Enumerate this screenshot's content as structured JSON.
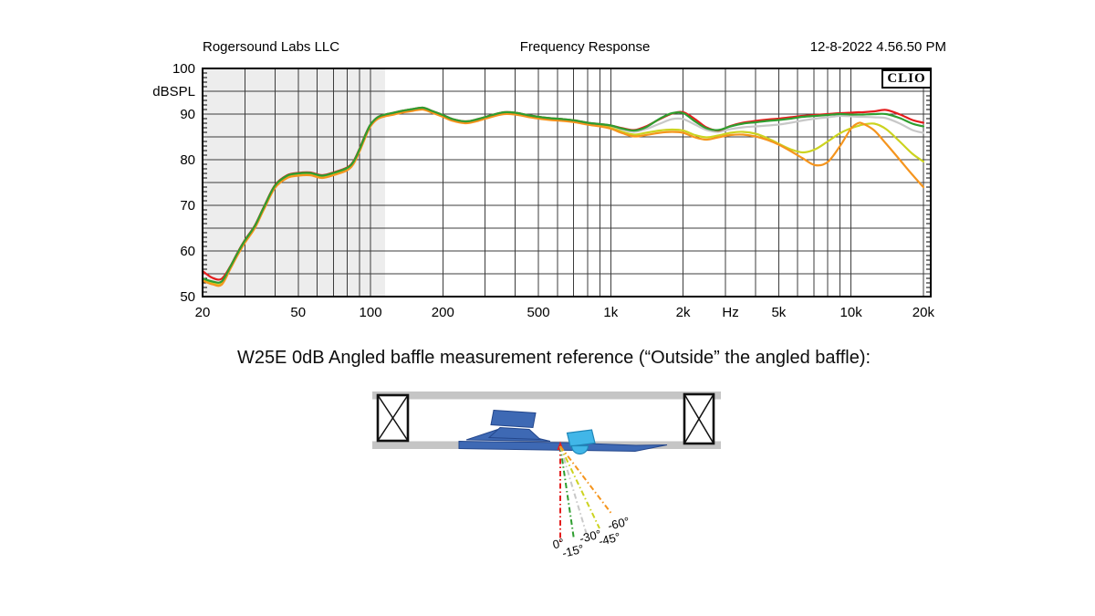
{
  "header": {
    "company": "Rogersound Labs LLC",
    "title": "Frequency Response",
    "timestamp": "12-8-2022 4.56.50 PM",
    "logo": "CLIO"
  },
  "caption": "W25E 0dB Angled baffle measurement reference (“Outside” the angled baffle):",
  "chart_data": {
    "type": "line",
    "title": "Frequency Response",
    "ylabel": "dBSPL",
    "x_unit": "Hz",
    "x_scale": "log",
    "xlim": [
      20,
      20000
    ],
    "ylim": [
      50,
      100
    ],
    "grid": "on",
    "y_ticks": [
      100,
      90,
      80,
      70,
      60,
      50
    ],
    "y_grid_step": 5,
    "x_ticks": [
      {
        "f": 20,
        "label": "20"
      },
      {
        "f": 50,
        "label": "50"
      },
      {
        "f": 100,
        "label": "100"
      },
      {
        "f": 200,
        "label": "200"
      },
      {
        "f": 500,
        "label": "500"
      },
      {
        "f": 1000,
        "label": "1k"
      },
      {
        "f": 2000,
        "label": "2k"
      },
      {
        "f": 3150,
        "label": "Hz"
      },
      {
        "f": 5000,
        "label": "5k"
      },
      {
        "f": 10000,
        "label": "10k"
      },
      {
        "f": 20000,
        "label": "20k"
      }
    ],
    "shaded_region": {
      "from": 20,
      "to": 115,
      "color": "#ededed"
    },
    "x": [
      20,
      22,
      24,
      26,
      28,
      30,
      33,
      36,
      40,
      45,
      50,
      56,
      63,
      71,
      80,
      85,
      90,
      95,
      100,
      107,
      115,
      125,
      135,
      150,
      165,
      180,
      200,
      220,
      250,
      280,
      320,
      360,
      400,
      450,
      500,
      560,
      630,
      710,
      800,
      900,
      1000,
      1120,
      1250,
      1400,
      1600,
      1800,
      2000,
      2240,
      2500,
      2800,
      3150,
      3550,
      4000,
      4500,
      5000,
      5600,
      6300,
      7100,
      8000,
      9000,
      10000,
      10700,
      11200,
      12500,
      14000,
      16000,
      18000,
      20000
    ],
    "series": [
      {
        "name": "0°",
        "color": "#e41e1e",
        "values": [
          55.6,
          54.1,
          53.9,
          56.5,
          59.7,
          62.4,
          65.6,
          69.7,
          74.4,
          76.6,
          77.1,
          77.2,
          76.6,
          77.3,
          78.3,
          79.7,
          82.4,
          85.4,
          87.7,
          89.3,
          89.9,
          90.3,
          90.7,
          91.1,
          91.4,
          90.7,
          89.8,
          88.9,
          88.4,
          88.9,
          89.8,
          90.4,
          90.3,
          89.8,
          89.4,
          89.1,
          88.9,
          88.6,
          88.1,
          87.8,
          87.5,
          86.9,
          86.5,
          87.3,
          88.9,
          90.1,
          90.4,
          88.9,
          87.1,
          86.4,
          87.4,
          88.1,
          88.5,
          88.8,
          89.0,
          89.3,
          89.6,
          89.8,
          90.0,
          90.2,
          90.3,
          90.4,
          90.4,
          90.6,
          90.9,
          89.9,
          88.7,
          88.1
        ]
      },
      {
        "name": "-15°",
        "color": "#2f9e30",
        "values": [
          54.0,
          53.3,
          53.3,
          56.4,
          59.6,
          62.3,
          65.5,
          69.6,
          74.3,
          76.5,
          77.0,
          77.1,
          76.5,
          77.2,
          78.2,
          79.6,
          82.3,
          85.3,
          87.7,
          89.3,
          89.9,
          90.3,
          90.7,
          91.1,
          91.4,
          90.7,
          89.8,
          88.9,
          88.4,
          88.9,
          89.8,
          90.4,
          90.3,
          89.8,
          89.4,
          89.1,
          88.9,
          88.6,
          88.1,
          87.8,
          87.5,
          86.8,
          86.4,
          87.1,
          89.0,
          90.2,
          90.2,
          88.4,
          86.9,
          86.5,
          87.3,
          87.9,
          88.2,
          88.5,
          88.7,
          89.0,
          89.4,
          89.6,
          89.8,
          90.0,
          89.9,
          89.9,
          89.9,
          90.0,
          90.0,
          89.1,
          87.9,
          87.3
        ]
      },
      {
        "name": "-30°",
        "color": "#c8c8c8",
        "values": [
          53.9,
          53.1,
          53.0,
          56.3,
          59.5,
          62.2,
          65.4,
          69.5,
          74.2,
          76.4,
          76.9,
          77.0,
          76.4,
          77.1,
          78.1,
          79.5,
          82.2,
          85.2,
          87.6,
          89.2,
          89.8,
          90.2,
          90.6,
          91.0,
          91.3,
          90.6,
          89.7,
          88.8,
          88.3,
          88.8,
          89.7,
          90.3,
          90.2,
          89.7,
          89.3,
          89.0,
          88.8,
          88.5,
          88.0,
          87.7,
          87.2,
          86.6,
          86.1,
          86.7,
          87.9,
          88.9,
          88.9,
          87.7,
          86.5,
          86.1,
          86.7,
          87.1,
          87.3,
          87.5,
          87.7,
          88.1,
          88.6,
          89.0,
          89.3,
          89.6,
          89.5,
          89.4,
          89.4,
          89.3,
          89.1,
          87.9,
          86.5,
          85.9
        ]
      },
      {
        "name": "-45°",
        "color": "#ccd320",
        "values": [
          53.7,
          52.9,
          52.8,
          56.1,
          59.3,
          62.0,
          65.2,
          69.3,
          74.0,
          76.2,
          76.7,
          76.8,
          76.2,
          76.9,
          77.9,
          79.3,
          82.0,
          85.0,
          87.5,
          89.1,
          89.7,
          90.1,
          90.5,
          90.9,
          91.2,
          90.5,
          89.6,
          88.7,
          88.2,
          88.7,
          89.6,
          90.2,
          90.1,
          89.6,
          89.2,
          88.9,
          88.7,
          88.4,
          87.9,
          87.5,
          87.0,
          86.1,
          85.5,
          85.9,
          86.4,
          86.6,
          86.4,
          85.4,
          84.9,
          85.3,
          85.9,
          86.1,
          85.7,
          84.7,
          83.5,
          82.3,
          81.6,
          82.3,
          84.0,
          85.8,
          86.9,
          87.4,
          87.7,
          87.9,
          86.7,
          83.9,
          81.3,
          79.6
        ]
      },
      {
        "name": "-60°",
        "color": "#f5951e",
        "values": [
          53.5,
          52.7,
          52.6,
          55.9,
          59.1,
          61.8,
          65.0,
          69.1,
          73.8,
          76.0,
          76.5,
          76.6,
          76.0,
          76.7,
          77.7,
          79.1,
          81.8,
          84.8,
          87.3,
          88.9,
          89.5,
          89.9,
          90.3,
          90.7,
          91.0,
          90.3,
          89.4,
          88.5,
          88.0,
          88.5,
          89.4,
          90.0,
          89.9,
          89.4,
          89.0,
          88.7,
          88.5,
          88.2,
          87.7,
          87.3,
          86.8,
          85.8,
          85.1,
          85.4,
          85.9,
          86.1,
          85.9,
          84.9,
          84.4,
          84.9,
          85.4,
          85.5,
          85.1,
          84.3,
          83.3,
          81.9,
          80.3,
          78.8,
          79.5,
          83.0,
          86.8,
          88.0,
          87.9,
          86.4,
          83.5,
          79.9,
          76.7,
          74.0
        ]
      }
    ]
  },
  "diagram": {
    "angles": [
      {
        "label": "0°",
        "color": "#e41e1e"
      },
      {
        "label": "-15°",
        "color": "#2f9e30"
      },
      {
        "label": "-30°",
        "color": "#c8c8c8"
      },
      {
        "label": "-45°",
        "color": "#ccd320"
      },
      {
        "label": "-60°",
        "color": "#f5951e"
      }
    ]
  }
}
